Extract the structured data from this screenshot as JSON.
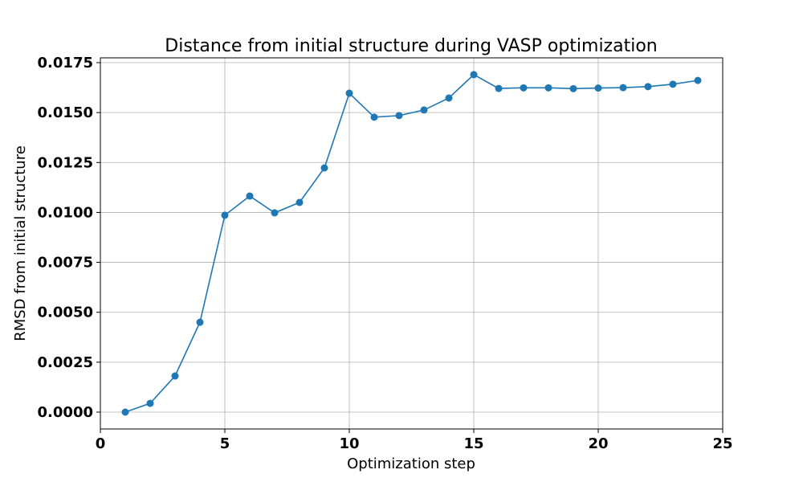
{
  "chart_data": {
    "type": "line",
    "title": "Distance from initial structure during VASP optimization",
    "xlabel": "Optimization step",
    "ylabel": "RMSD from initial structure",
    "xlim": [
      0,
      25
    ],
    "ylim": [
      -0.0008,
      0.01775
    ],
    "xticks": [
      "0",
      "5",
      "10",
      "15",
      "20",
      "25"
    ],
    "yticks": [
      "0.0000",
      "0.0025",
      "0.0050",
      "0.0075",
      "0.0100",
      "0.0125",
      "0.0150",
      "0.0175"
    ],
    "grid": true,
    "color": "#1f77b4",
    "marker": "circle",
    "x": [
      1,
      2,
      3,
      4,
      5,
      6,
      7,
      8,
      9,
      10,
      11,
      12,
      13,
      14,
      15,
      16,
      17,
      18,
      19,
      20,
      21,
      22,
      23,
      24
    ],
    "y": [
      0.0,
      0.00044,
      0.00181,
      0.0045,
      0.00986,
      0.01082,
      0.00998,
      0.0105,
      0.01223,
      0.01597,
      0.01477,
      0.01485,
      0.01513,
      0.01573,
      0.0169,
      0.01621,
      0.01624,
      0.01624,
      0.0162,
      0.01623,
      0.01625,
      0.0163,
      0.01642,
      0.01661
    ]
  }
}
